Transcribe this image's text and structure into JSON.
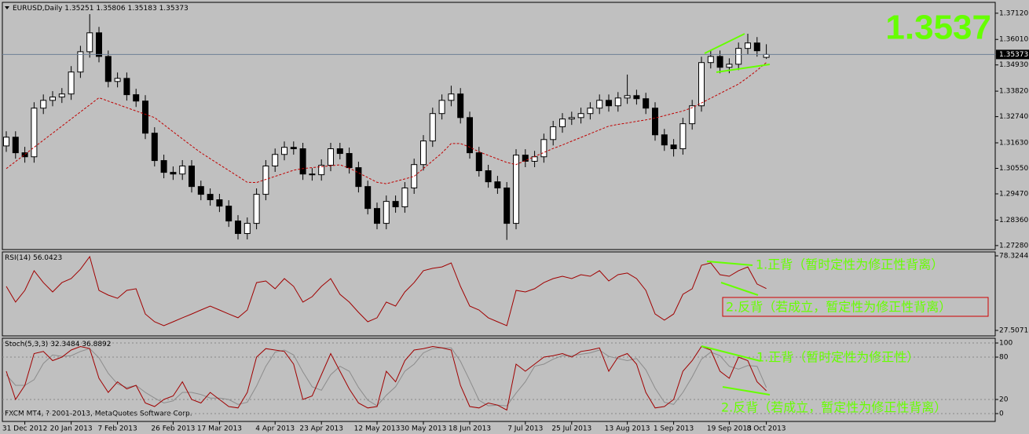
{
  "chart_data": [
    {
      "type": "candlestick",
      "symbol": "EURUSD,Daily",
      "price_display": "1.3537",
      "categories": [
        null,
        null,
        "31 Dec 2012",
        null,
        null,
        null,
        null,
        "20 Jan 2013",
        null,
        null,
        null,
        null,
        "7 Feb 2013",
        null,
        null,
        null,
        null,
        null,
        "26 Feb 2013",
        null,
        null,
        null,
        null,
        "17 Mar 2013",
        null,
        null,
        null,
        null,
        null,
        "4 Apr 2013",
        null,
        null,
        null,
        null,
        "23 Apr 2013",
        null,
        null,
        null,
        null,
        null,
        "12 May 2013",
        null,
        null,
        null,
        null,
        "30 May 2013",
        null,
        null,
        null,
        null,
        "18 Jun 2013",
        null,
        null,
        null,
        null,
        null,
        "7 Jul 2013",
        null,
        null,
        null,
        null,
        "25 Jul 2013",
        null,
        null,
        null,
        null,
        null,
        "13 Aug 2013",
        null,
        null,
        null,
        null,
        "1 Sep 2013",
        null,
        null,
        null,
        null,
        null,
        "19 Sep 2013",
        null,
        null,
        null,
        "8 Oct 2013"
      ],
      "open": [
        1.315,
        1.3187,
        1.3121,
        1.3104,
        1.331,
        1.3343,
        1.3357,
        1.337,
        1.3463,
        1.3549,
        1.3629,
        1.3529,
        1.3423,
        1.3436,
        1.3367,
        1.334,
        1.3204,
        1.3088,
        1.3038,
        1.3031,
        1.3065,
        1.2978,
        1.2945,
        1.2922,
        1.2895,
        1.2832,
        1.2779,
        1.2822,
        1.2945,
        1.3065,
        1.3114,
        1.3144,
        1.3138,
        1.3031,
        1.3028,
        1.3068,
        1.3138,
        1.3118,
        1.3058,
        1.2978,
        1.2885,
        1.2822,
        1.2915,
        1.2892,
        1.2972,
        1.3071,
        1.3171,
        1.3287,
        1.3343,
        1.337,
        1.327,
        1.3121,
        1.3045,
        1.2998,
        1.2972,
        1.2822,
        1.3111,
        1.3085,
        1.3104,
        1.3177,
        1.3231,
        1.3264,
        1.327,
        1.3287,
        1.331,
        1.3343,
        1.332,
        1.3353,
        1.3363,
        1.335,
        1.331,
        1.3197,
        1.3154,
        1.3138,
        1.3244,
        1.332,
        1.3503,
        1.3529,
        1.3483,
        1.3496,
        1.3563,
        1.3586,
        1.35251
      ],
      "high": [
        1.3212,
        1.3212,
        1.3146,
        1.3335,
        1.3368,
        1.3382,
        1.3395,
        1.3488,
        1.3574,
        1.3708,
        1.3654,
        1.3554,
        1.3461,
        1.3461,
        1.3392,
        1.3365,
        1.3229,
        1.3113,
        1.3063,
        1.309,
        1.309,
        1.3003,
        1.297,
        1.2947,
        1.292,
        1.2857,
        1.2847,
        1.297,
        1.309,
        1.3139,
        1.3169,
        1.3169,
        1.3163,
        1.3056,
        1.3093,
        1.3163,
        1.3163,
        1.3143,
        1.3083,
        1.3003,
        1.291,
        1.294,
        1.294,
        1.2997,
        1.3096,
        1.3196,
        1.3312,
        1.3368,
        1.3405,
        1.3395,
        1.3295,
        1.3146,
        1.307,
        1.3023,
        1.2997,
        1.3136,
        1.3136,
        1.3129,
        1.3202,
        1.3256,
        1.3289,
        1.3295,
        1.3312,
        1.3335,
        1.3368,
        1.3368,
        1.3378,
        1.3452,
        1.3388,
        1.3375,
        1.3335,
        1.3222,
        1.3179,
        1.3269,
        1.3345,
        1.3528,
        1.3554,
        1.3554,
        1.3521,
        1.3588,
        1.3625,
        1.3611,
        1.35806
      ],
      "low": [
        1.3125,
        1.3096,
        1.3079,
        1.3079,
        1.3285,
        1.3318,
        1.3332,
        1.3345,
        1.3438,
        1.3524,
        1.3504,
        1.3398,
        1.3398,
        1.3342,
        1.3315,
        1.3179,
        1.3063,
        1.3013,
        1.3006,
        1.3006,
        1.2953,
        1.292,
        1.2897,
        1.287,
        1.2807,
        1.2754,
        1.2754,
        1.2797,
        1.292,
        1.304,
        1.3089,
        1.3113,
        1.3006,
        1.3003,
        1.3003,
        1.3043,
        1.3093,
        1.3033,
        1.2953,
        1.286,
        1.2797,
        1.2797,
        1.2867,
        1.2867,
        1.2947,
        1.3046,
        1.3146,
        1.3262,
        1.3318,
        1.3245,
        1.3096,
        1.302,
        1.2973,
        1.2947,
        1.2752,
        1.2797,
        1.306,
        1.306,
        1.3079,
        1.3152,
        1.3206,
        1.3239,
        1.3245,
        1.3262,
        1.3285,
        1.3295,
        1.3295,
        1.3328,
        1.3325,
        1.3285,
        1.3172,
        1.3129,
        1.3105,
        1.3113,
        1.3219,
        1.3295,
        1.3478,
        1.3458,
        1.3458,
        1.3471,
        1.3538,
        1.3528,
        1.35183
      ],
      "close": [
        1.3187,
        1.3121,
        1.3104,
        1.331,
        1.3343,
        1.3357,
        1.337,
        1.3463,
        1.3549,
        1.3629,
        1.3529,
        1.3423,
        1.3436,
        1.3367,
        1.334,
        1.3204,
        1.3088,
        1.3038,
        1.3031,
        1.3065,
        1.2978,
        1.2945,
        1.2922,
        1.2895,
        1.2832,
        1.2779,
        1.2822,
        1.2945,
        1.3065,
        1.3114,
        1.3144,
        1.3138,
        1.3031,
        1.3028,
        1.3068,
        1.3138,
        1.3118,
        1.3058,
        1.2978,
        1.2885,
        1.2822,
        1.2915,
        1.2892,
        1.2972,
        1.3071,
        1.3171,
        1.3287,
        1.3343,
        1.337,
        1.327,
        1.3121,
        1.3045,
        1.2998,
        1.2972,
        1.2822,
        1.3111,
        1.3085,
        1.3104,
        1.3177,
        1.3231,
        1.3264,
        1.327,
        1.3287,
        1.331,
        1.3343,
        1.332,
        1.3353,
        1.3363,
        1.335,
        1.331,
        1.3197,
        1.3154,
        1.3138,
        1.3244,
        1.332,
        1.3503,
        1.3529,
        1.3483,
        1.3496,
        1.3563,
        1.3586,
        1.3553,
        1.35373
      ],
      "moving_average": {
        "color": "#c00000",
        "values": [
          1.3054,
          1.3084,
          1.3114,
          1.3144,
          1.3174,
          1.3204,
          1.3234,
          1.3264,
          1.3294,
          1.3324,
          1.3354,
          1.334,
          1.3326,
          1.3312,
          1.3298,
          1.3284,
          1.327,
          1.324,
          1.321,
          1.318,
          1.315,
          1.3121,
          1.3096,
          1.3071,
          1.3046,
          1.3021,
          1.2996,
          1.2995,
          1.3008,
          1.3021,
          1.3034,
          1.3047,
          1.3054,
          1.3058,
          1.3062,
          1.3066,
          1.307,
          1.3056,
          1.3036,
          1.3016,
          1.2996,
          1.299,
          1.3,
          1.301,
          1.3021,
          1.3054,
          1.3087,
          1.312,
          1.316,
          1.316,
          1.3145,
          1.3125,
          1.311,
          1.3095,
          1.308,
          1.3071,
          1.3088,
          1.3105,
          1.3122,
          1.3139,
          1.3154,
          1.317,
          1.3186,
          1.3202,
          1.3218,
          1.3234,
          1.3241,
          1.3247,
          1.3254,
          1.326,
          1.3268,
          1.3278,
          1.3288,
          1.3298,
          1.3312,
          1.3332,
          1.3352,
          1.3372,
          1.3392,
          1.3412,
          1.344,
          1.347,
          1.3503
        ]
      },
      "up_color": "#ffffff",
      "down_color": "#000000",
      "price_line_color": "#6e7f96",
      "ylim": [
        1.2711,
        1.3758
      ],
      "yticks": [
        {
          "value": 1.3712,
          "label": "1.37120"
        },
        {
          "value": 1.3601,
          "label": "1.36010"
        },
        {
          "value": 1.3493,
          "label": "1.34930"
        },
        {
          "value": 1.3382,
          "label": "1.33820"
        },
        {
          "value": 1.3274,
          "label": "1.32740"
        },
        {
          "value": 1.3163,
          "label": "1.31630"
        },
        {
          "value": 1.3055,
          "label": "1.30550"
        },
        {
          "value": 1.2947,
          "label": "1.29470"
        },
        {
          "value": 1.2836,
          "label": "1.28360"
        },
        {
          "value": 1.2728,
          "label": "1.27280"
        }
      ],
      "grid": false
    },
    {
      "type": "line",
      "title": "RSI(14)",
      "color": "#a00000",
      "values": [
        57.5,
        46.8,
        54.8,
        68.2,
        60.1,
        53.7,
        60.1,
        62.8,
        69.2,
        77.8,
        54.8,
        51.6,
        49.4,
        54.8,
        55.9,
        38.7,
        33.4,
        30.7,
        33.4,
        36.1,
        38.7,
        41.4,
        44.1,
        41.4,
        38.7,
        36.1,
        41.4,
        60.1,
        61.2,
        55.9,
        62.8,
        57.5,
        46.8,
        50.5,
        57.5,
        62.8,
        52.1,
        46.8,
        39.8,
        33.4,
        36.1,
        46.8,
        44.1,
        53.7,
        60.1,
        68.2,
        69.8,
        70.8,
        73.5,
        57.5,
        44.1,
        41.4,
        36.1,
        33.4,
        30.7,
        54.8,
        53.7,
        55.9,
        60.1,
        62.8,
        64.4,
        62.8,
        65.5,
        64.4,
        68.2,
        61.2,
        65.5,
        66.6,
        62.8,
        54.8,
        38.7,
        34.5,
        38.7,
        52.1,
        55.9,
        71.9,
        73.5,
        65.5,
        64.4,
        68.2,
        70.8,
        59.1,
        56.0423
      ],
      "ylim": [
        23.76,
        81.0
      ],
      "yticks": [
        78.3244,
        27.5071
      ],
      "grid": false,
      "annotations": [
        "1.正背（暂时定性为修正性背离）",
        "2.反背（若成立，暂定性为修正性背离）"
      ]
    },
    {
      "type": "line",
      "title": "Stoch(5,3,3)",
      "series": [
        {
          "color": "#a00000",
          "values": [
            60,
            20,
            40,
            85,
            88,
            75,
            80,
            90,
            95,
            92,
            50,
            30,
            45,
            35,
            40,
            15,
            10,
            20,
            25,
            45,
            20,
            15,
            30,
            20,
            10,
            8,
            30,
            80,
            92,
            90,
            88,
            70,
            20,
            25,
            55,
            85,
            60,
            35,
            15,
            8,
            10,
            60,
            45,
            75,
            90,
            92,
            95,
            93,
            90,
            40,
            10,
            8,
            15,
            12,
            5,
            70,
            60,
            70,
            80,
            82,
            85,
            80,
            88,
            90,
            93,
            60,
            80,
            85,
            70,
            30,
            8,
            10,
            20,
            60,
            75,
            95,
            90,
            60,
            50,
            80,
            75,
            45,
            32.3484
          ]
        },
        {
          "color": "#8c8c8c",
          "values": [
            55,
            40,
            40,
            48,
            71,
            83,
            81,
            82,
            88,
            92,
            79,
            57,
            42,
            37,
            40,
            30,
            22,
            15,
            18,
            30,
            30,
            27,
            22,
            22,
            20,
            13,
            16,
            39,
            67,
            87,
            90,
            83,
            59,
            38,
            33,
            55,
            67,
            60,
            37,
            19,
            11,
            26,
            38,
            60,
            70,
            86,
            92,
            93,
            93,
            74,
            47,
            19,
            11,
            12,
            11,
            29,
            45,
            67,
            70,
            77,
            82,
            82,
            84,
            86,
            90,
            81,
            78,
            75,
            78,
            62,
            36,
            16,
            13,
            30,
            52,
            77,
            87,
            82,
            67,
            63,
            68,
            67,
            36.8892
          ]
        }
      ],
      "ylim": [
        -11.1,
        106.7
      ],
      "yticks": [
        100,
        80,
        20,
        0
      ],
      "grid": true,
      "annotations": [
        "1.正背（暂时定性为修正性）",
        "2.反背（若成立，暂定性为修正性背离）"
      ],
      "footnote": "FXCM MT4, ? 2001-2013, MetaQuotes Software Corp."
    }
  ]
}
